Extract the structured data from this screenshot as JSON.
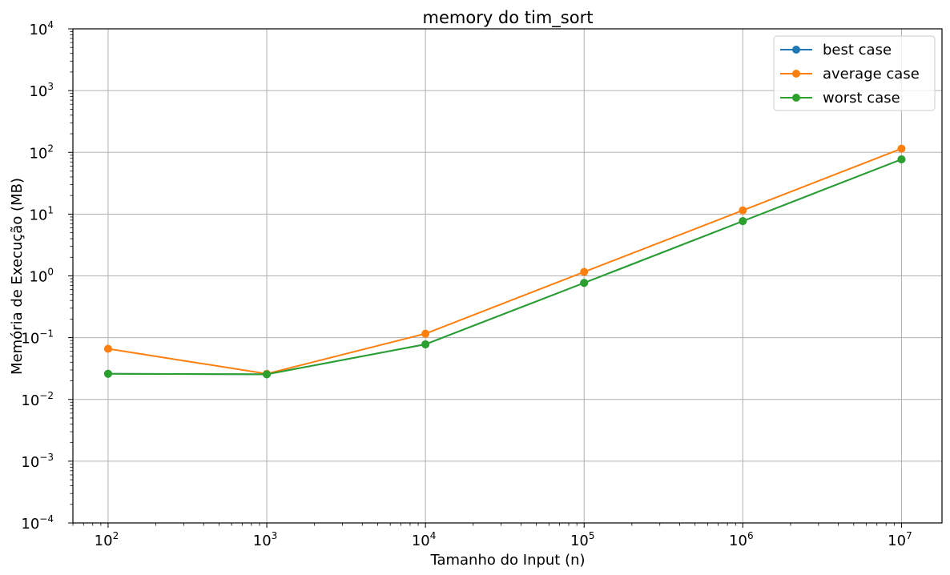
{
  "chart_data": {
    "type": "line",
    "title": "memory do tim_sort",
    "xlabel": "Tamanho do Input (n)",
    "ylabel": "Memória de Execução (MB)",
    "xscale": "log",
    "yscale": "log",
    "xlim": [
      60,
      18000000
    ],
    "ylim": [
      0.0001,
      10000
    ],
    "xticks": [
      {
        "value": 100,
        "base": "10",
        "exp": "2"
      },
      {
        "value": 1000,
        "base": "10",
        "exp": "3"
      },
      {
        "value": 10000,
        "base": "10",
        "exp": "4"
      },
      {
        "value": 100000,
        "base": "10",
        "exp": "5"
      },
      {
        "value": 1000000,
        "base": "10",
        "exp": "6"
      },
      {
        "value": 10000000,
        "base": "10",
        "exp": "7"
      }
    ],
    "yticks": [
      {
        "value": 0.0001,
        "base": "10",
        "exp": "−4"
      },
      {
        "value": 0.001,
        "base": "10",
        "exp": "−3"
      },
      {
        "value": 0.01,
        "base": "10",
        "exp": "−2"
      },
      {
        "value": 0.1,
        "base": "10",
        "exp": "−1"
      },
      {
        "value": 1,
        "base": "10",
        "exp": "0"
      },
      {
        "value": 10,
        "base": "10",
        "exp": "1"
      },
      {
        "value": 100,
        "base": "10",
        "exp": "2"
      },
      {
        "value": 1000,
        "base": "10",
        "exp": "3"
      },
      {
        "value": 10000,
        "base": "10",
        "exp": "4"
      }
    ],
    "grid": true,
    "legend_position": "top-right",
    "x": [
      100,
      1000,
      10000,
      100000,
      1000000,
      10000000
    ],
    "series": [
      {
        "name": "best case",
        "color": "#1f77b4",
        "values": [
          0.026,
          0.0255,
          0.078,
          0.77,
          7.7,
          77
        ]
      },
      {
        "name": "average case",
        "color": "#ff7f0e",
        "values": [
          0.066,
          0.026,
          0.116,
          1.16,
          11.5,
          115
        ]
      },
      {
        "name": "worst case",
        "color": "#2ca02c",
        "values": [
          0.026,
          0.0255,
          0.078,
          0.77,
          7.7,
          77
        ]
      }
    ]
  }
}
